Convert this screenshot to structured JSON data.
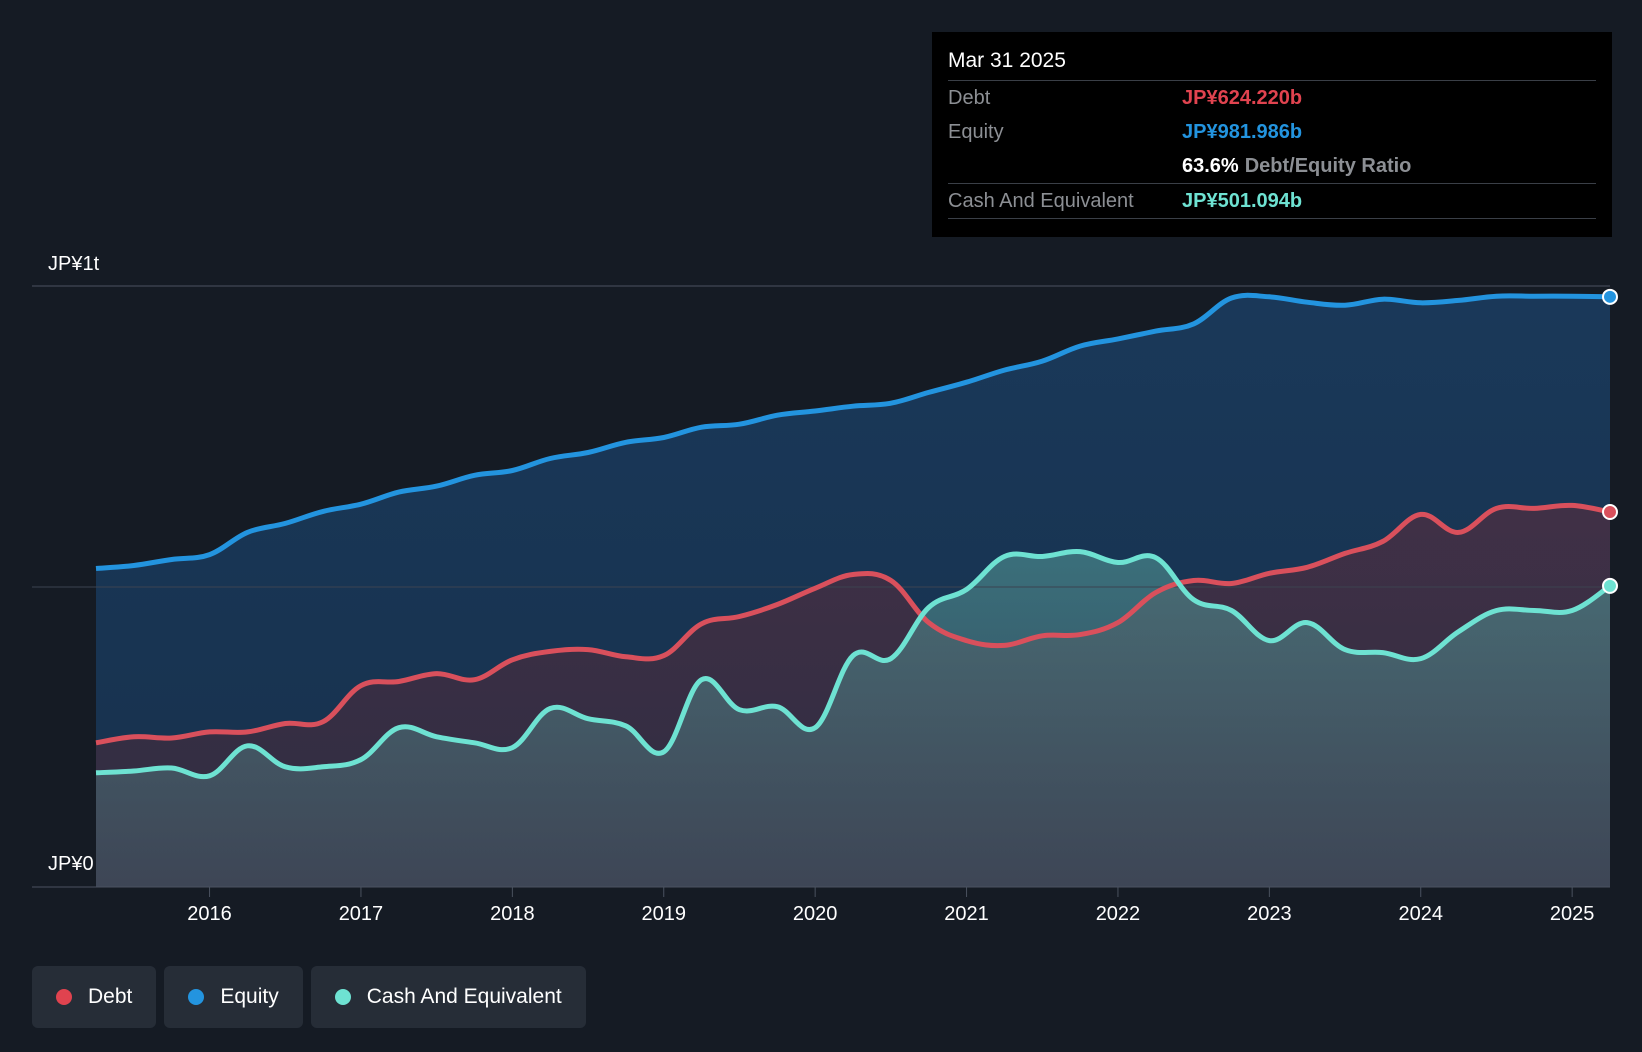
{
  "tooltip": {
    "date": "Mar 31 2025",
    "debt_label": "Debt",
    "debt_value": "JP¥624.220b",
    "equity_label": "Equity",
    "equity_value": "JP¥981.986b",
    "ratio_value": "63.6%",
    "ratio_label": "Debt/Equity Ratio",
    "cash_label": "Cash And Equivalent",
    "cash_value": "JP¥501.094b"
  },
  "legend": [
    {
      "label": "Debt",
      "color": "#e0434f"
    },
    {
      "label": "Equity",
      "color": "#2394df"
    },
    {
      "label": "Cash And Equivalent",
      "color": "#6ee2d2"
    }
  ],
  "colors": {
    "debt": "#d9505c",
    "equity": "#2394df",
    "cash": "#6ee2d2",
    "debt_text": "#e0434f",
    "equity_text": "#2394df",
    "cash_text": "#6ee2d2"
  },
  "chart_data": {
    "type": "area",
    "title": "",
    "xlabel": "",
    "ylabel": "",
    "y_tick_labels": [
      "JP¥0",
      "JP¥1t"
    ],
    "ylim": [
      0,
      1000
    ],
    "xlim": [
      2015.25,
      2025.25
    ],
    "x_ticks": [
      2016,
      2017,
      2018,
      2019,
      2020,
      2021,
      2022,
      2023,
      2024,
      2025
    ],
    "x_tick_labels": [
      "2016",
      "2017",
      "2018",
      "2019",
      "2020",
      "2021",
      "2022",
      "2023",
      "2024",
      "2025"
    ],
    "units": "JP¥ billions",
    "series": [
      {
        "name": "Equity",
        "x": [
          2015.25,
          2015.5,
          2015.75,
          2016.0,
          2016.25,
          2016.5,
          2016.75,
          2017.0,
          2017.25,
          2017.5,
          2017.75,
          2018.0,
          2018.25,
          2018.5,
          2018.75,
          2019.0,
          2019.25,
          2019.5,
          2019.75,
          2020.0,
          2020.25,
          2020.5,
          2020.75,
          2021.0,
          2021.25,
          2021.5,
          2021.75,
          2022.0,
          2022.25,
          2022.5,
          2022.75,
          2023.0,
          2023.25,
          2023.5,
          2023.75,
          2024.0,
          2024.25,
          2024.5,
          2024.75,
          2025.0,
          2025.25
        ],
        "values": [
          530,
          535,
          545,
          553,
          590,
          605,
          625,
          637,
          657,
          667,
          685,
          693,
          713,
          723,
          740,
          748,
          765,
          770,
          785,
          792,
          800,
          805,
          823,
          840,
          860,
          875,
          900,
          912,
          925,
          937,
          980,
          982,
          973,
          968,
          978,
          972,
          976,
          983,
          983,
          983,
          982
        ]
      },
      {
        "name": "Debt",
        "x": [
          2015.25,
          2015.5,
          2015.75,
          2016.0,
          2016.25,
          2016.5,
          2016.75,
          2017.0,
          2017.25,
          2017.5,
          2017.75,
          2018.0,
          2018.25,
          2018.5,
          2018.75,
          2019.0,
          2019.25,
          2019.5,
          2019.75,
          2020.0,
          2020.25,
          2020.5,
          2020.75,
          2021.0,
          2021.25,
          2021.5,
          2021.75,
          2022.0,
          2022.25,
          2022.5,
          2022.75,
          2023.0,
          2023.25,
          2023.5,
          2023.75,
          2024.0,
          2024.25,
          2024.5,
          2024.75,
          2025.0,
          2025.25
        ],
        "values": [
          240,
          250,
          248,
          258,
          258,
          272,
          275,
          335,
          342,
          355,
          345,
          378,
          392,
          395,
          383,
          385,
          438,
          450,
          470,
          497,
          520,
          510,
          440,
          410,
          402,
          418,
          420,
          440,
          490,
          510,
          505,
          522,
          532,
          555,
          575,
          620,
          590,
          630,
          630,
          635,
          624
        ]
      },
      {
        "name": "Cash And Equivalent",
        "x": [
          2015.25,
          2015.5,
          2015.75,
          2016.0,
          2016.25,
          2016.5,
          2016.75,
          2017.0,
          2017.25,
          2017.5,
          2017.75,
          2018.0,
          2018.25,
          2018.5,
          2018.75,
          2019.0,
          2019.25,
          2019.5,
          2019.75,
          2020.0,
          2020.25,
          2020.5,
          2020.75,
          2021.0,
          2021.25,
          2021.5,
          2021.75,
          2022.0,
          2022.25,
          2022.5,
          2022.75,
          2023.0,
          2023.25,
          2023.5,
          2023.75,
          2024.0,
          2024.25,
          2024.5,
          2024.75,
          2025.0,
          2025.25
        ],
        "values": [
          190,
          193,
          198,
          185,
          235,
          200,
          200,
          212,
          265,
          250,
          240,
          232,
          297,
          280,
          268,
          225,
          345,
          295,
          300,
          265,
          385,
          380,
          465,
          495,
          550,
          550,
          558,
          540,
          548,
          478,
          460,
          410,
          440,
          395,
          390,
          380,
          425,
          460,
          460,
          460,
          501
        ]
      }
    ],
    "tooltip_point": {
      "x": 2025.25,
      "debt": 624.22,
      "equity": 981.986,
      "cash": 501.094,
      "ratio_pct": 63.6
    }
  }
}
